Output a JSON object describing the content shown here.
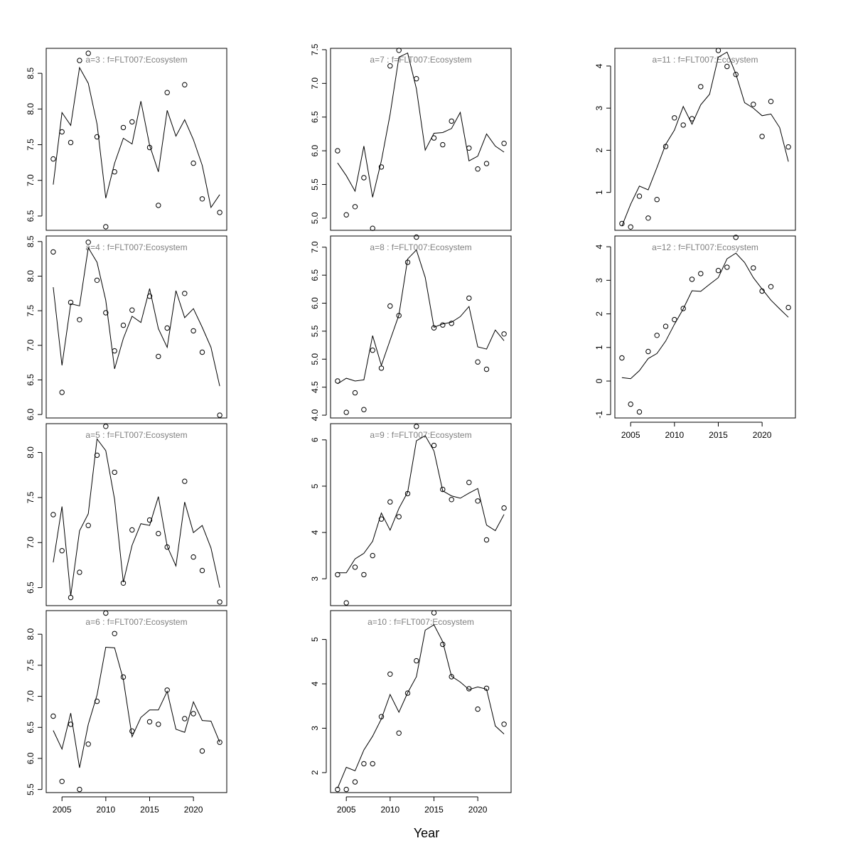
{
  "figure": {
    "xlabel": "Year"
  },
  "chart_data": [
    {
      "type": "scatter",
      "title": "a=3  :  f=FLT007:Ecosystem",
      "x": [
        2004,
        2005,
        2006,
        2007,
        2008,
        2009,
        2010,
        2011,
        2012,
        2013,
        2014,
        2015,
        2016,
        2017,
        2018,
        2019,
        2020,
        2021,
        2022,
        2023
      ],
      "observed": [
        7.3,
        7.68,
        7.53,
        8.68,
        8.78,
        7.61,
        6.35,
        7.12,
        7.74,
        7.82,
        null,
        7.46,
        6.65,
        8.23,
        null,
        8.34,
        7.24,
        6.74,
        null,
        6.55
      ],
      "fitted": [
        6.94,
        7.95,
        7.77,
        8.58,
        8.36,
        7.79,
        6.75,
        7.24,
        7.59,
        7.51,
        8.11,
        7.49,
        7.12,
        7.98,
        7.62,
        7.85,
        7.57,
        7.21,
        6.62,
        6.8
      ],
      "xlim": [
        2003.2,
        2023.8
      ],
      "ylim": [
        6.3,
        8.85
      ],
      "xticks": [
        2005,
        2010,
        2015,
        2020
      ],
      "yticks": [
        6.5,
        7.0,
        7.5,
        8.0,
        8.5
      ],
      "ytick_labels": [
        "6.5",
        "7.0",
        "7.5",
        "8.0",
        "8.5"
      ],
      "show_xaxis": false
    },
    {
      "type": "scatter",
      "title": "a=4  :  f=FLT007:Ecosystem",
      "x": [
        2004,
        2005,
        2006,
        2007,
        2008,
        2009,
        2010,
        2011,
        2012,
        2013,
        2014,
        2015,
        2016,
        2017,
        2018,
        2019,
        2020,
        2021,
        2022,
        2023
      ],
      "observed": [
        8.35,
        6.32,
        7.62,
        7.37,
        8.49,
        7.94,
        7.47,
        6.92,
        7.29,
        7.51,
        null,
        7.71,
        6.84,
        7.25,
        null,
        7.75,
        7.21,
        6.9,
        null,
        5.99
      ],
      "fitted": [
        7.84,
        6.71,
        7.6,
        7.57,
        8.41,
        8.2,
        7.65,
        6.66,
        7.1,
        7.42,
        7.33,
        7.82,
        7.24,
        6.97,
        7.79,
        7.4,
        7.53,
        7.26,
        6.97,
        6.41
      ],
      "xlim": [
        2003.2,
        2023.8
      ],
      "ylim": [
        5.95,
        8.58
      ],
      "xticks": [
        2005,
        2010,
        2015,
        2020
      ],
      "yticks": [
        6.0,
        6.5,
        7.0,
        7.5,
        8.0,
        8.5
      ],
      "ytick_labels": [
        "6.0",
        "6.5",
        "7.0",
        "7.5",
        "8.0",
        "8.5"
      ],
      "show_xaxis": false
    },
    {
      "type": "scatter",
      "title": "a=5  :  f=FLT007:Ecosystem",
      "x": [
        2004,
        2005,
        2006,
        2007,
        2008,
        2009,
        2010,
        2011,
        2012,
        2013,
        2014,
        2015,
        2016,
        2017,
        2018,
        2019,
        2020,
        2021,
        2022,
        2023
      ],
      "observed": [
        7.31,
        6.91,
        6.39,
        6.67,
        7.19,
        7.97,
        8.29,
        7.78,
        6.55,
        7.14,
        null,
        7.25,
        7.1,
        6.95,
        null,
        7.68,
        6.84,
        6.69,
        null,
        6.34
      ],
      "fitted": [
        6.78,
        7.4,
        6.41,
        7.13,
        7.32,
        8.15,
        8.02,
        7.48,
        6.56,
        6.97,
        7.21,
        7.19,
        7.51,
        6.96,
        6.74,
        7.45,
        7.11,
        7.19,
        6.94,
        6.5
      ],
      "xlim": [
        2003.2,
        2023.8
      ],
      "ylim": [
        6.3,
        8.32
      ],
      "xticks": [
        2005,
        2010,
        2015,
        2020
      ],
      "yticks": [
        6.5,
        7.0,
        7.5,
        8.0
      ],
      "ytick_labels": [
        "6.5",
        "7.0",
        "7.5",
        "8.0"
      ],
      "show_xaxis": false
    },
    {
      "type": "scatter",
      "title": "a=6  :  f=FLT007:Ecosystem",
      "x": [
        2004,
        2005,
        2006,
        2007,
        2008,
        2009,
        2010,
        2011,
        2012,
        2013,
        2014,
        2015,
        2016,
        2017,
        2018,
        2019,
        2020,
        2021,
        2022,
        2023
      ],
      "observed": [
        6.68,
        5.63,
        6.55,
        5.5,
        6.23,
        6.92,
        8.34,
        8.01,
        7.31,
        6.44,
        null,
        6.59,
        6.55,
        7.1,
        null,
        6.64,
        6.72,
        6.12,
        null,
        6.26
      ],
      "fitted": [
        6.45,
        6.15,
        6.73,
        5.85,
        6.55,
        7.02,
        7.79,
        7.78,
        7.27,
        6.35,
        6.66,
        6.78,
        6.78,
        7.08,
        6.47,
        6.42,
        6.91,
        6.61,
        6.6,
        6.26
      ],
      "xlim": [
        2003.2,
        2023.8
      ],
      "ylim": [
        5.45,
        8.38
      ],
      "xticks": [
        2005,
        2010,
        2015,
        2020
      ],
      "yticks": [
        5.5,
        6.0,
        6.5,
        7.0,
        7.5,
        8.0
      ],
      "ytick_labels": [
        "5.5",
        "6.0",
        "6.5",
        "7.0",
        "7.5",
        "8.0"
      ],
      "show_xaxis": true
    },
    {
      "type": "scatter",
      "title": "a=7  :  f=FLT007:Ecosystem",
      "x": [
        2004,
        2005,
        2006,
        2007,
        2008,
        2009,
        2010,
        2011,
        2012,
        2013,
        2014,
        2015,
        2016,
        2017,
        2018,
        2019,
        2020,
        2021,
        2022,
        2023
      ],
      "observed": [
        6.0,
        5.05,
        5.17,
        5.6,
        4.85,
        5.76,
        7.26,
        7.49,
        null,
        7.07,
        null,
        6.19,
        6.09,
        6.44,
        null,
        6.04,
        5.73,
        5.81,
        null,
        6.11
      ],
      "fitted": [
        5.82,
        5.63,
        5.4,
        6.07,
        5.31,
        5.85,
        6.54,
        7.39,
        7.45,
        6.92,
        6.01,
        6.26,
        6.27,
        6.33,
        6.57,
        5.85,
        5.92,
        6.25,
        6.07,
        5.98
      ],
      "xlim": [
        2003.2,
        2023.8
      ],
      "ylim": [
        4.82,
        7.52
      ],
      "xticks": [
        2005,
        2010,
        2015,
        2020
      ],
      "yticks": [
        5.0,
        5.5,
        6.0,
        6.5,
        7.0,
        7.5
      ],
      "ytick_labels": [
        "5.0",
        "5.5",
        "6.0",
        "6.5",
        "7.0",
        "7.5"
      ],
      "show_xaxis": false
    },
    {
      "type": "scatter",
      "title": "a=8  :  f=FLT007:Ecosystem",
      "x": [
        2004,
        2005,
        2006,
        2007,
        2008,
        2009,
        2010,
        2011,
        2012,
        2013,
        2014,
        2015,
        2016,
        2017,
        2018,
        2019,
        2020,
        2021,
        2022,
        2023
      ],
      "observed": [
        4.61,
        4.05,
        4.4,
        4.1,
        5.16,
        4.84,
        5.95,
        5.78,
        6.73,
        7.18,
        null,
        5.56,
        5.61,
        5.64,
        null,
        6.09,
        4.95,
        4.82,
        null,
        5.45
      ],
      "fitted": [
        4.56,
        4.66,
        4.61,
        4.63,
        5.42,
        4.89,
        5.34,
        5.79,
        6.79,
        6.95,
        6.46,
        5.57,
        5.63,
        5.66,
        5.76,
        5.94,
        5.22,
        5.18,
        5.52,
        5.33
      ],
      "xlim": [
        2003.2,
        2023.8
      ],
      "ylim": [
        3.95,
        7.2
      ],
      "xticks": [
        2005,
        2010,
        2015,
        2020
      ],
      "yticks": [
        4.0,
        4.5,
        5.0,
        5.5,
        6.0,
        6.5,
        7.0
      ],
      "ytick_labels": [
        "4.0",
        "4.5",
        "5.0",
        "5.5",
        "6.0",
        "6.5",
        "7.0"
      ],
      "show_xaxis": false
    },
    {
      "type": "scatter",
      "title": "a=9  :  f=FLT007:Ecosystem",
      "x": [
        2004,
        2005,
        2006,
        2007,
        2008,
        2009,
        2010,
        2011,
        2012,
        2013,
        2014,
        2015,
        2016,
        2017,
        2018,
        2019,
        2020,
        2021,
        2022,
        2023
      ],
      "observed": [
        3.09,
        2.48,
        3.25,
        3.09,
        3.5,
        4.29,
        4.66,
        4.34,
        4.84,
        6.29,
        null,
        5.88,
        4.93,
        4.71,
        null,
        5.08,
        4.68,
        3.84,
        null,
        4.53
      ],
      "fitted": [
        3.13,
        3.13,
        3.43,
        3.55,
        3.81,
        4.42,
        4.05,
        4.52,
        4.87,
        5.98,
        6.09,
        5.76,
        4.9,
        4.79,
        4.74,
        4.85,
        4.95,
        4.16,
        4.04,
        4.39
      ],
      "xlim": [
        2003.2,
        2023.8
      ],
      "ylim": [
        2.42,
        6.35
      ],
      "xticks": [
        2005,
        2010,
        2015,
        2020
      ],
      "yticks": [
        3,
        4,
        5,
        6
      ],
      "ytick_labels": [
        "3",
        "4",
        "5",
        "6"
      ],
      "show_xaxis": false
    },
    {
      "type": "scatter",
      "title": "a=10  :  f=FLT007:Ecosystem",
      "x": [
        2004,
        2005,
        2006,
        2007,
        2008,
        2009,
        2010,
        2011,
        2012,
        2013,
        2014,
        2015,
        2016,
        2017,
        2018,
        2019,
        2020,
        2021,
        2022,
        2023
      ],
      "observed": [
        1.62,
        1.62,
        1.79,
        2.2,
        2.2,
        3.26,
        4.22,
        2.89,
        3.79,
        4.52,
        null,
        5.6,
        4.89,
        4.16,
        null,
        3.89,
        3.43,
        3.9,
        null,
        3.09
      ],
      "fitted": [
        1.65,
        2.12,
        2.04,
        2.51,
        2.82,
        3.21,
        3.76,
        3.36,
        3.8,
        4.16,
        5.21,
        5.33,
        4.95,
        4.17,
        4.04,
        3.87,
        3.93,
        3.88,
        3.05,
        2.87
      ],
      "xlim": [
        2003.2,
        2023.8
      ],
      "ylim": [
        1.55,
        5.65
      ],
      "xticks": [
        2005,
        2010,
        2015,
        2020
      ],
      "yticks": [
        2,
        3,
        4,
        5
      ],
      "ytick_labels": [
        "2",
        "3",
        "4",
        "5"
      ],
      "show_xaxis": true
    },
    {
      "type": "scatter",
      "title": "a=11  :  f=FLT007:Ecosystem",
      "x": [
        2004,
        2005,
        2006,
        2007,
        2008,
        2009,
        2010,
        2011,
        2012,
        2013,
        2014,
        2015,
        2016,
        2017,
        2018,
        2019,
        2020,
        2021,
        2022,
        2023
      ],
      "observed": [
        0.26,
        0.18,
        0.91,
        0.39,
        0.83,
        2.09,
        2.77,
        2.6,
        2.75,
        3.51,
        null,
        4.37,
        3.99,
        3.8,
        null,
        3.09,
        2.33,
        3.16,
        null,
        2.08
      ],
      "fitted": [
        0.2,
        0.72,
        1.15,
        1.06,
        1.59,
        2.14,
        2.48,
        3.04,
        2.62,
        3.08,
        3.33,
        4.21,
        4.33,
        3.81,
        3.13,
        3.0,
        2.82,
        2.86,
        2.54,
        1.73
      ],
      "xlim": [
        2003.2,
        2023.8
      ],
      "ylim": [
        0.1,
        4.42
      ],
      "xticks": [
        2005,
        2010,
        2015,
        2020
      ],
      "yticks": [
        1,
        2,
        3,
        4
      ],
      "ytick_labels": [
        "1",
        "2",
        "3",
        "4"
      ],
      "show_xaxis": false
    },
    {
      "type": "scatter",
      "title": "a=12  :  f=FLT007:Ecosystem",
      "x": [
        2004,
        2005,
        2006,
        2007,
        2008,
        2009,
        2010,
        2011,
        2012,
        2013,
        2014,
        2015,
        2016,
        2017,
        2018,
        2019,
        2020,
        2021,
        2022,
        2023
      ],
      "observed": [
        0.69,
        -0.69,
        -0.92,
        0.88,
        1.36,
        1.63,
        1.83,
        2.16,
        3.03,
        3.2,
        null,
        3.29,
        3.39,
        4.28,
        null,
        3.37,
        2.68,
        2.81,
        null,
        2.19
      ],
      "fitted": [
        0.1,
        0.07,
        0.31,
        0.67,
        0.82,
        1.19,
        1.69,
        2.15,
        2.69,
        2.67,
        2.88,
        3.08,
        3.64,
        3.81,
        3.53,
        3.08,
        2.74,
        2.41,
        2.15,
        1.9
      ],
      "xlim": [
        2003.2,
        2023.8
      ],
      "ylim": [
        -1.1,
        4.32
      ],
      "xticks": [
        2005,
        2010,
        2015,
        2020
      ],
      "yticks": [
        -1,
        0,
        1,
        2,
        3,
        4
      ],
      "ytick_labels": [
        "-1",
        "0",
        "1",
        "2",
        "3",
        "4"
      ],
      "show_xaxis": true
    }
  ]
}
